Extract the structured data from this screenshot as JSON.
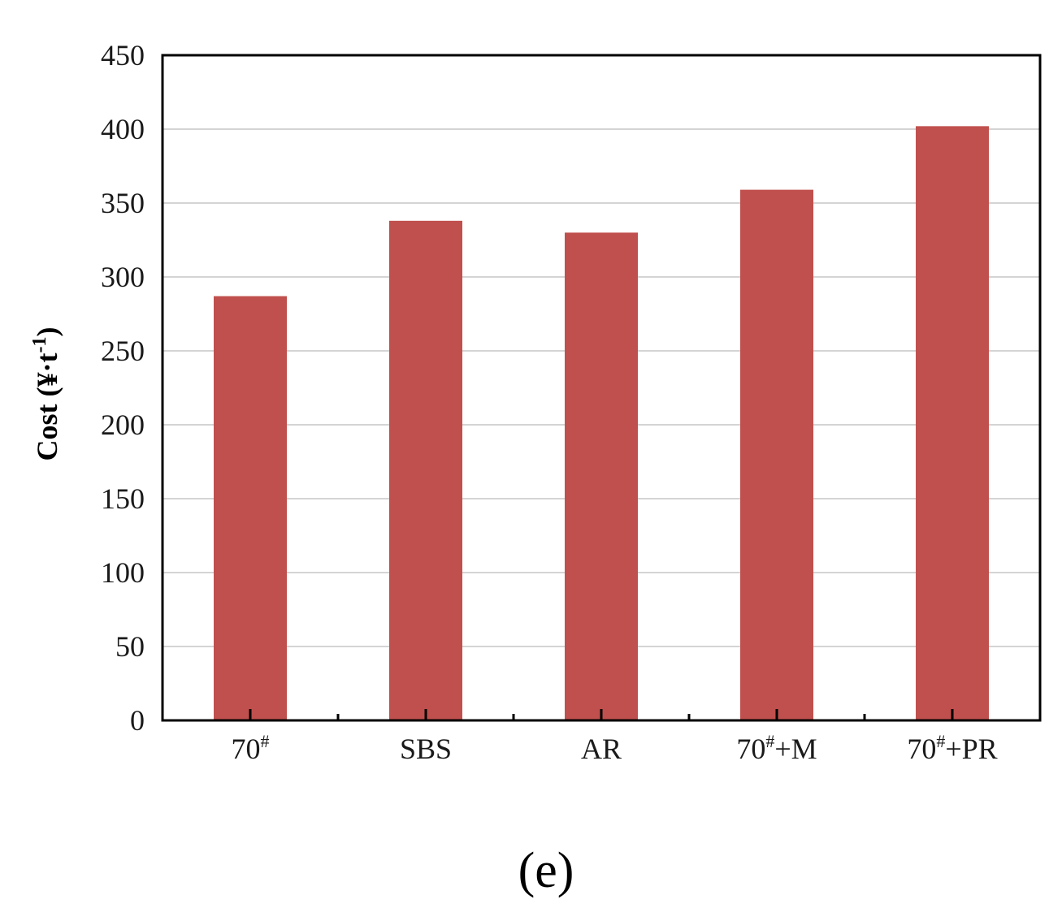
{
  "chart_data": {
    "type": "bar",
    "title": "",
    "xlabel": "",
    "ylabel": "Cost (¥·t",
    "ylabel_superscript": "-1",
    "ylabel_close": ")",
    "categories": [
      {
        "base": "70",
        "sup": "#",
        "suffix": ""
      },
      {
        "base": "SBS",
        "sup": "",
        "suffix": ""
      },
      {
        "base": "AR",
        "sup": "",
        "suffix": ""
      },
      {
        "base": "70",
        "sup": "#",
        "suffix": "+M"
      },
      {
        "base": "70",
        "sup": "#",
        "suffix": "+PR"
      }
    ],
    "values": [
      287,
      338,
      330,
      359,
      402
    ],
    "ylim": [
      0,
      450
    ],
    "yticks": [
      0,
      50,
      100,
      150,
      200,
      250,
      300,
      350,
      400,
      450
    ],
    "grid": true,
    "legend": "none",
    "bar_color": "#c0504d",
    "grid_color": "#d4d4d4",
    "axis_color": "#000000"
  },
  "panel_label": "(e)"
}
